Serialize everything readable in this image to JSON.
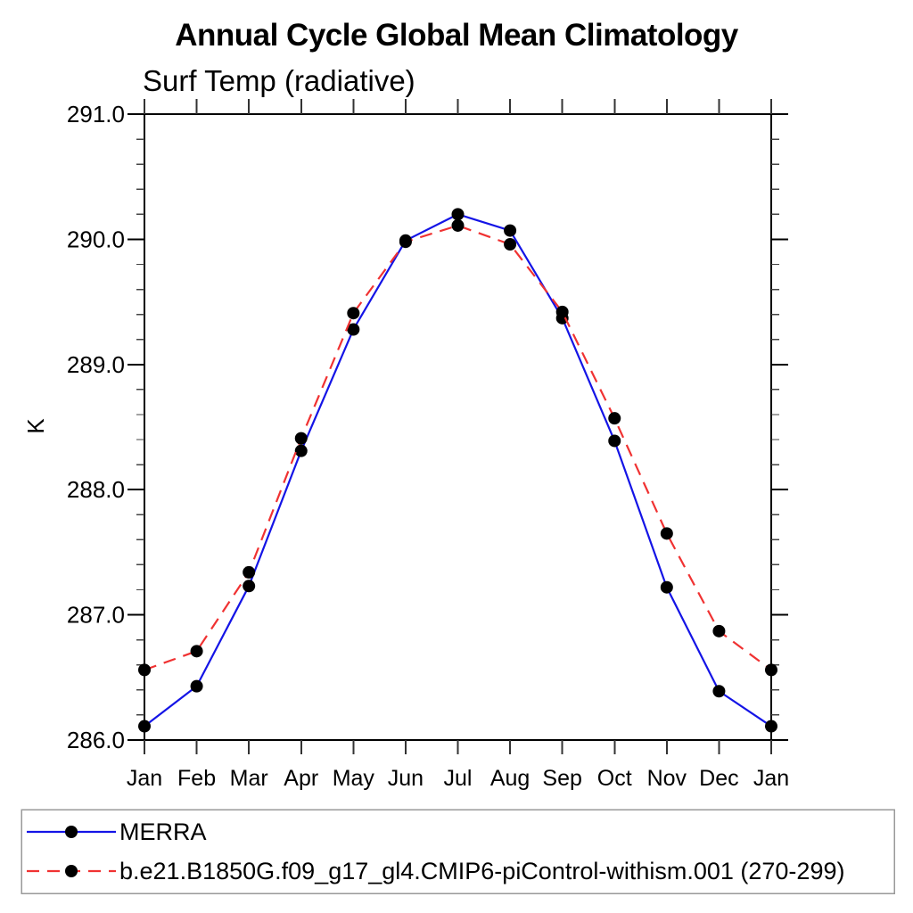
{
  "title": "Annual Cycle Global Mean Climatology",
  "subtitle": "Surf Temp (radiative)",
  "ylabel": "K",
  "chart_data": {
    "type": "line",
    "categories": [
      "Jan",
      "Feb",
      "Mar",
      "Apr",
      "May",
      "Jun",
      "Jul",
      "Aug",
      "Sep",
      "Oct",
      "Nov",
      "Dec",
      "Jan"
    ],
    "series": [
      {
        "name": "MERRA",
        "color": "#1414e6",
        "dash": "none",
        "marker": "filled-circle",
        "marker_color": "#000000",
        "values": [
          286.11,
          286.43,
          287.23,
          288.31,
          289.28,
          289.99,
          290.2,
          290.07,
          289.37,
          288.39,
          287.22,
          286.39,
          286.11
        ]
      },
      {
        "name": "b.e21.B1850G.f09_g17_gl4.CMIP6-piControl-withism.001 (270-299)",
        "color": "#f03232",
        "dash": "14,9",
        "marker": "filled-circle",
        "marker_color": "#000000",
        "values": [
          286.56,
          286.71,
          287.34,
          288.41,
          289.41,
          289.98,
          290.11,
          289.96,
          289.42,
          288.57,
          287.65,
          286.87,
          286.56
        ]
      }
    ],
    "title": "Annual Cycle Global Mean Climatology",
    "subtitle": "Surf Temp (radiative)",
    "xlabel": "",
    "ylabel": "K",
    "ylim": [
      286.0,
      291.0
    ],
    "ytick_step": 1.0,
    "ytick_minor_step": 0.2,
    "ytick_labels": [
      "286.0",
      "287.0",
      "288.0",
      "289.0",
      "290.0",
      "291.0"
    ],
    "grid": false,
    "legend_position": "bottom-box"
  },
  "colors": {
    "axis": "#000000",
    "minor_tick": "#444444",
    "legend_border": "#999999",
    "background": "#ffffff",
    "text": "#000000"
  }
}
